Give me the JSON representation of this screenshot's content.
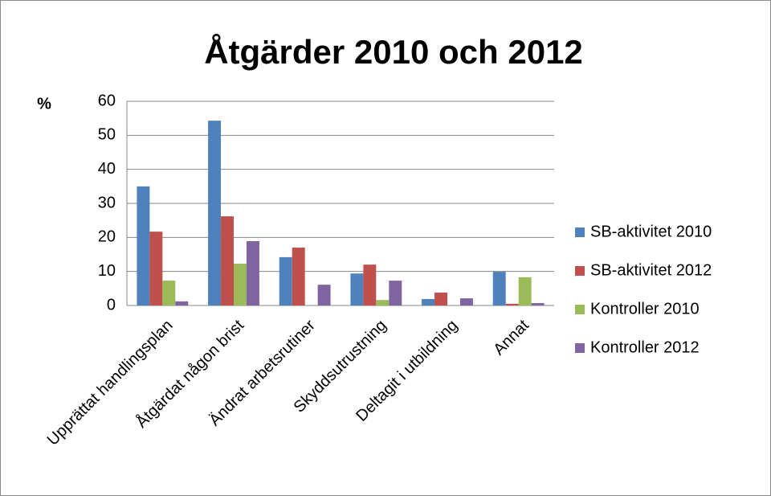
{
  "chart_data": {
    "type": "bar",
    "title": "Åtgärder 2010 och 2012",
    "y_label": "%",
    "categories": [
      "Upprättat handlingsplan",
      "Åtgärdat någon brist",
      "Ändrat arbetsrutiner",
      "Skyddsutrustning",
      "Deltagit i utbildning",
      "Annat"
    ],
    "series": [
      {
        "name": "SB-aktivitet 2010",
        "color": "#4f81bd",
        "values": [
          35,
          54.3,
          14.2,
          9.4,
          1.9,
          9.9
        ]
      },
      {
        "name": "SB-aktivitet 2012",
        "color": "#c0504d",
        "values": [
          21.7,
          26.2,
          17,
          12,
          3.8,
          0.5
        ]
      },
      {
        "name": "Kontroller 2010",
        "color": "#9bbb59",
        "values": [
          7.3,
          12.3,
          0,
          1.6,
          0,
          8.3
        ]
      },
      {
        "name": "Kontroller 2012",
        "color": "#8064a2",
        "values": [
          1.2,
          18.9,
          6.1,
          7.3,
          2.1,
          0.7
        ]
      }
    ],
    "ylim": [
      0,
      60
    ],
    "yticks": [
      0,
      10,
      20,
      30,
      40,
      50,
      60
    ],
    "grid": true,
    "legend": "right"
  }
}
